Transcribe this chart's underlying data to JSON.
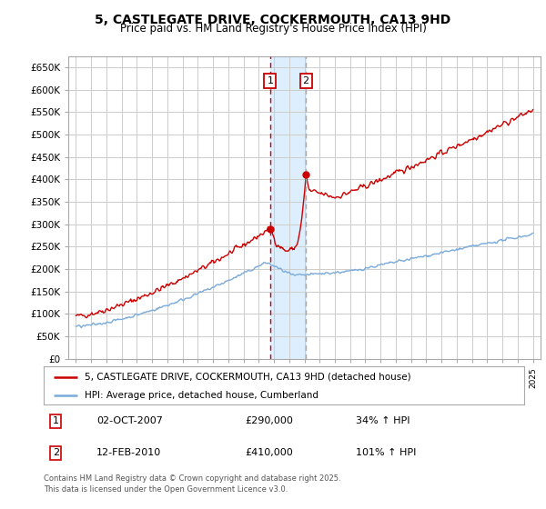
{
  "title": "5, CASTLEGATE DRIVE, COCKERMOUTH, CA13 9HD",
  "subtitle": "Price paid vs. HM Land Registry's House Price Index (HPI)",
  "ylabel_ticks": [
    "£0",
    "£50K",
    "£100K",
    "£150K",
    "£200K",
    "£250K",
    "£300K",
    "£350K",
    "£400K",
    "£450K",
    "£500K",
    "£550K",
    "£600K",
    "£650K"
  ],
  "ytick_vals": [
    0,
    50000,
    100000,
    150000,
    200000,
    250000,
    300000,
    350000,
    400000,
    450000,
    500000,
    550000,
    600000,
    650000
  ],
  "xlim_start": 1994.5,
  "xlim_end": 2025.5,
  "ylim_top": 675000,
  "sale1_date": 2007.75,
  "sale2_date": 2010.1,
  "sale1_price": 290000,
  "sale2_price": 410000,
  "sale1_label": "1",
  "sale2_label": "2",
  "legend_line1": "5, CASTLEGATE DRIVE, COCKERMOUTH, CA13 9HD (detached house)",
  "legend_line2": "HPI: Average price, detached house, Cumberland",
  "table_row1": [
    "1",
    "02-OCT-2007",
    "£290,000",
    "34% ↑ HPI"
  ],
  "table_row2": [
    "2",
    "12-FEB-2010",
    "£410,000",
    "101% ↑ HPI"
  ],
  "footer": "Contains HM Land Registry data © Crown copyright and database right 2025.\nThis data is licensed under the Open Government Licence v3.0.",
  "line1_color": "#cc0000",
  "line2_color": "#7aabdb",
  "shade_color": "#ddeeff",
  "vline1_color": "#cc0000",
  "vline2_color": "#aaaaaa",
  "background_color": "#ffffff",
  "grid_color": "#cccccc",
  "marker_box_color": "#cc0000"
}
